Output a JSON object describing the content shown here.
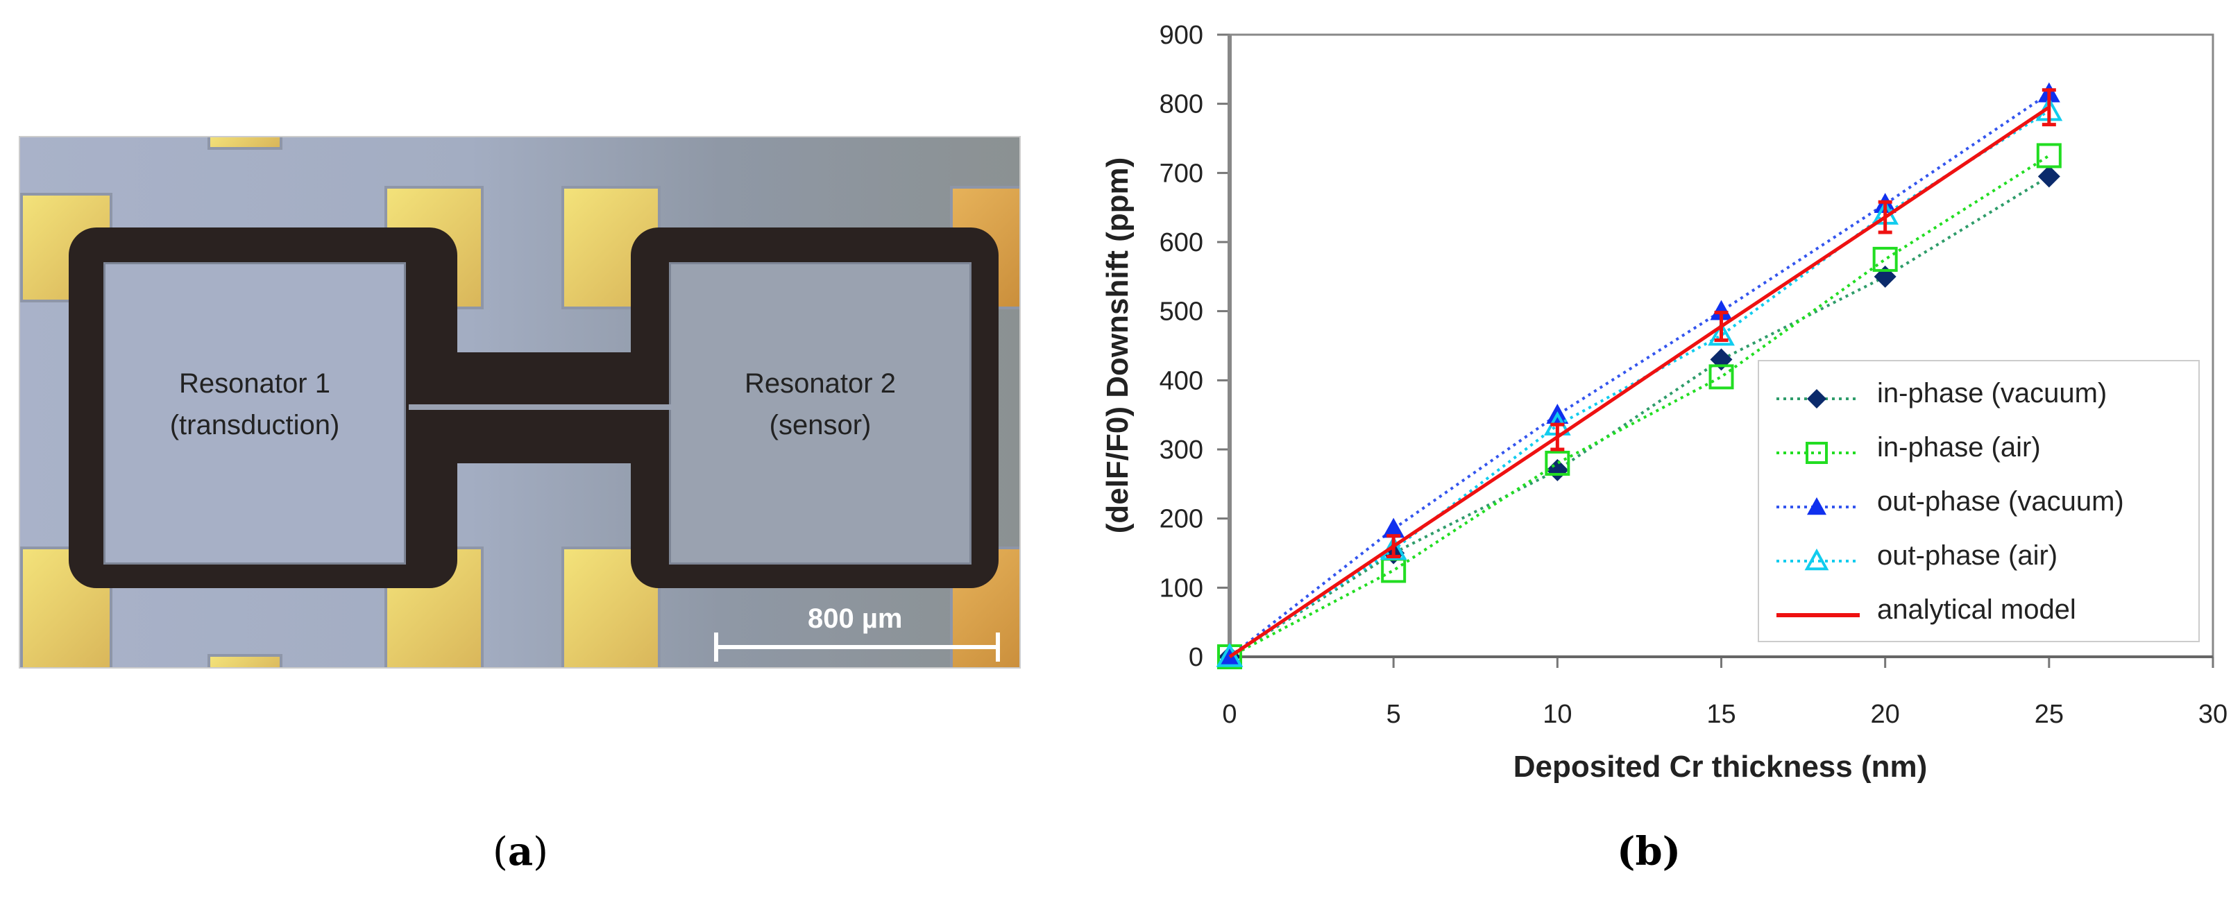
{
  "panel_a": {
    "label_open": "(",
    "label": "a",
    "label_close": ")",
    "resonator1_title": "Resonator 1",
    "resonator1_sub": "(transduction)",
    "resonator2_title": "Resonator 2",
    "resonator2_sub": "(sensor)",
    "scale_bar": "800 µm"
  },
  "panel_b": {
    "label": "(b)"
  },
  "chart_data": {
    "type": "line",
    "xlabel": "Deposited Cr thickness (nm)",
    "ylabel": "(delF/F0) Downshift (ppm)",
    "xlim": [
      0,
      30
    ],
    "ylim": [
      0,
      900
    ],
    "xticks": [
      0,
      5,
      10,
      15,
      20,
      25,
      30
    ],
    "yticks": [
      0,
      100,
      200,
      300,
      400,
      500,
      600,
      700,
      800,
      900
    ],
    "legend_position": "lower-right",
    "x": [
      0,
      5,
      10,
      15,
      20,
      25
    ],
    "series": [
      {
        "name": "in-phase (vacuum)",
        "marker": "diamond",
        "line": "dotted",
        "color": "#0b2a6b",
        "line_color": "#2e9c6a",
        "values": [
          0,
          150,
          270,
          430,
          550,
          695
        ]
      },
      {
        "name": "in-phase (air)",
        "marker": "square-open",
        "line": "dotted",
        "color": "#22dd22",
        "line_color": "#22dd22",
        "values": [
          0,
          125,
          280,
          405,
          575,
          725
        ]
      },
      {
        "name": "out-phase (vacuum)",
        "marker": "triangle",
        "line": "dotted",
        "color": "#1030ee",
        "line_color": "#3355ee",
        "values": [
          0,
          185,
          350,
          500,
          655,
          815
        ]
      },
      {
        "name": "out-phase (air)",
        "marker": "triangle-open",
        "line": "dotted",
        "color": "#11ccee",
        "line_color": "#11ccee",
        "values": [
          0,
          155,
          335,
          465,
          640,
          790
        ]
      },
      {
        "name": "analytical model",
        "marker": "errorbar",
        "line": "solid",
        "color": "#ee1111",
        "line_color": "#ee1111",
        "values": [
          0,
          160,
          318,
          478,
          636,
          795
        ],
        "error": [
          0,
          15,
          18,
          20,
          22,
          25
        ]
      }
    ]
  }
}
